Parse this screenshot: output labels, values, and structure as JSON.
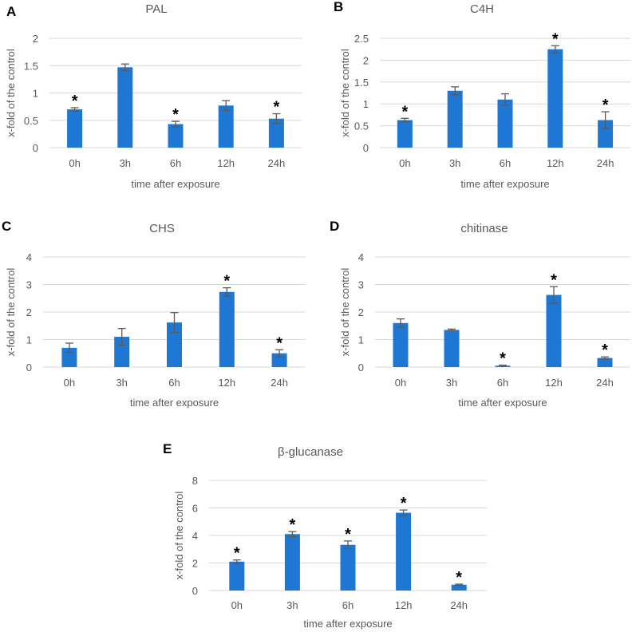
{
  "chart_data": [
    {
      "panel": "A",
      "type": "bar",
      "title": "PAL",
      "categories": [
        "0h",
        "3h",
        "6h",
        "12h",
        "24h"
      ],
      "values": [
        0.7,
        1.47,
        0.43,
        0.77,
        0.53
      ],
      "errors": [
        0.03,
        0.06,
        0.05,
        0.09,
        0.09
      ],
      "significant": [
        true,
        false,
        true,
        false,
        true
      ],
      "xlabel": "time after exposure",
      "ylabel": "x-fold of the control",
      "ylim": [
        0,
        2
      ],
      "yticks": [
        0,
        0.5,
        1,
        1.5,
        2
      ],
      "ytick_labels": [
        "0",
        "0.5",
        "1",
        "1.5",
        "2"
      ],
      "grid": true
    },
    {
      "panel": "B",
      "type": "bar",
      "title": "C4H",
      "categories": [
        "0h",
        "3h",
        "6h",
        "12h",
        "24h"
      ],
      "values": [
        0.63,
        1.3,
        1.1,
        2.25,
        0.63
      ],
      "errors": [
        0.04,
        0.09,
        0.13,
        0.08,
        0.19
      ],
      "significant": [
        true,
        false,
        false,
        true,
        true
      ],
      "xlabel": "time after exposure",
      "ylabel": "x-fold of the control",
      "ylim": [
        0,
        2.5
      ],
      "yticks": [
        0,
        0.5,
        1,
        1.5,
        2,
        2.5
      ],
      "ytick_labels": [
        "0",
        "0.5",
        "1",
        "1.5",
        "2",
        "2.5"
      ],
      "grid": true
    },
    {
      "panel": "C",
      "type": "bar",
      "title": "CHS",
      "categories": [
        "0h",
        "3h",
        "6h",
        "12h",
        "24h"
      ],
      "values": [
        0.7,
        1.1,
        1.62,
        2.73,
        0.5
      ],
      "errors": [
        0.17,
        0.3,
        0.36,
        0.15,
        0.13
      ],
      "significant": [
        false,
        false,
        false,
        true,
        true
      ],
      "xlabel": "time after exposure",
      "ylabel": "x-fold of the control",
      "ylim": [
        0,
        4
      ],
      "yticks": [
        0,
        1,
        2,
        3,
        4
      ],
      "ytick_labels": [
        "0",
        "1",
        "2",
        "3",
        "4"
      ],
      "grid": true
    },
    {
      "panel": "D",
      "type": "bar",
      "title": "chitinase",
      "categories": [
        "0h",
        "3h",
        "6h",
        "12h",
        "24h"
      ],
      "values": [
        1.6,
        1.35,
        0.05,
        2.62,
        0.33
      ],
      "errors": [
        0.15,
        0.03,
        0.02,
        0.3,
        0.04
      ],
      "significant": [
        false,
        false,
        true,
        true,
        true
      ],
      "xlabel": "time after exposure",
      "ylabel": "x-fold of the control",
      "ylim": [
        0,
        4
      ],
      "yticks": [
        0,
        1,
        2,
        3,
        4
      ],
      "ytick_labels": [
        "0",
        "1",
        "2",
        "3",
        "4"
      ],
      "grid": true
    },
    {
      "panel": "E",
      "type": "bar",
      "title": "β-glucanase",
      "categories": [
        "0h",
        "3h",
        "6h",
        "12h",
        "24h"
      ],
      "values": [
        2.1,
        4.1,
        3.32,
        5.65,
        0.42
      ],
      "errors": [
        0.12,
        0.18,
        0.28,
        0.2,
        0.04
      ],
      "significant": [
        true,
        true,
        true,
        true,
        true
      ],
      "xlabel": "time after exposure",
      "ylabel": "x-fold of the control",
      "ylim": [
        0,
        8
      ],
      "yticks": [
        0,
        2,
        4,
        6,
        8
      ],
      "ytick_labels": [
        "0",
        "2",
        "4",
        "6",
        "8"
      ],
      "grid": true
    }
  ],
  "significance_marker": "*",
  "colors": {
    "bar": "#1f77d4",
    "error_bar": "#5a5a5a",
    "grid": "#d9d9d9",
    "text": "#595959",
    "panel_letter": "#000000"
  }
}
